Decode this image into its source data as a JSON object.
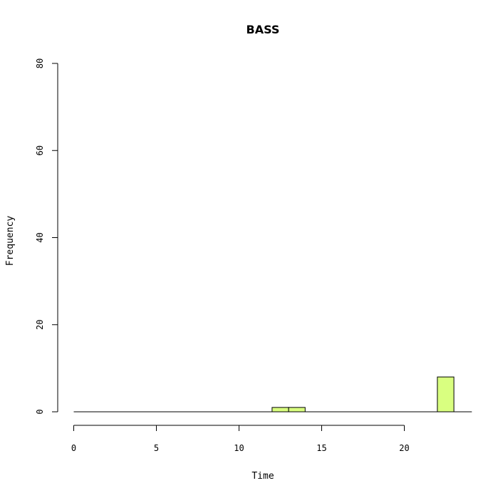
{
  "chart_data": {
    "type": "bar",
    "title": "BASS",
    "xlabel": "Time",
    "ylabel": "Frequency",
    "xlim": [
      0,
      24
    ],
    "ylim": [
      0,
      80
    ],
    "x_ticks": [
      0,
      5,
      10,
      15,
      20
    ],
    "y_ticks": [
      0,
      20,
      40,
      60,
      80
    ],
    "bin_width": 1,
    "bins": [
      {
        "start": 0,
        "end": 1,
        "value": 0
      },
      {
        "start": 1,
        "end": 2,
        "value": 0
      },
      {
        "start": 2,
        "end": 3,
        "value": 0
      },
      {
        "start": 3,
        "end": 4,
        "value": 0
      },
      {
        "start": 4,
        "end": 5,
        "value": 0
      },
      {
        "start": 5,
        "end": 6,
        "value": 0
      },
      {
        "start": 6,
        "end": 7,
        "value": 0
      },
      {
        "start": 7,
        "end": 8,
        "value": 0
      },
      {
        "start": 8,
        "end": 9,
        "value": 0
      },
      {
        "start": 9,
        "end": 10,
        "value": 0
      },
      {
        "start": 10,
        "end": 11,
        "value": 0
      },
      {
        "start": 11,
        "end": 12,
        "value": 0
      },
      {
        "start": 12,
        "end": 13,
        "value": 1
      },
      {
        "start": 13,
        "end": 14,
        "value": 1
      },
      {
        "start": 14,
        "end": 15,
        "value": 0
      },
      {
        "start": 15,
        "end": 16,
        "value": 0
      },
      {
        "start": 16,
        "end": 17,
        "value": 0
      },
      {
        "start": 17,
        "end": 18,
        "value": 0
      },
      {
        "start": 18,
        "end": 19,
        "value": 0
      },
      {
        "start": 19,
        "end": 20,
        "value": 0
      },
      {
        "start": 20,
        "end": 21,
        "value": 0
      },
      {
        "start": 21,
        "end": 22,
        "value": 0
      },
      {
        "start": 22,
        "end": 23,
        "value": 8
      }
    ],
    "bar_color": "#d9ff80",
    "grid": false
  }
}
